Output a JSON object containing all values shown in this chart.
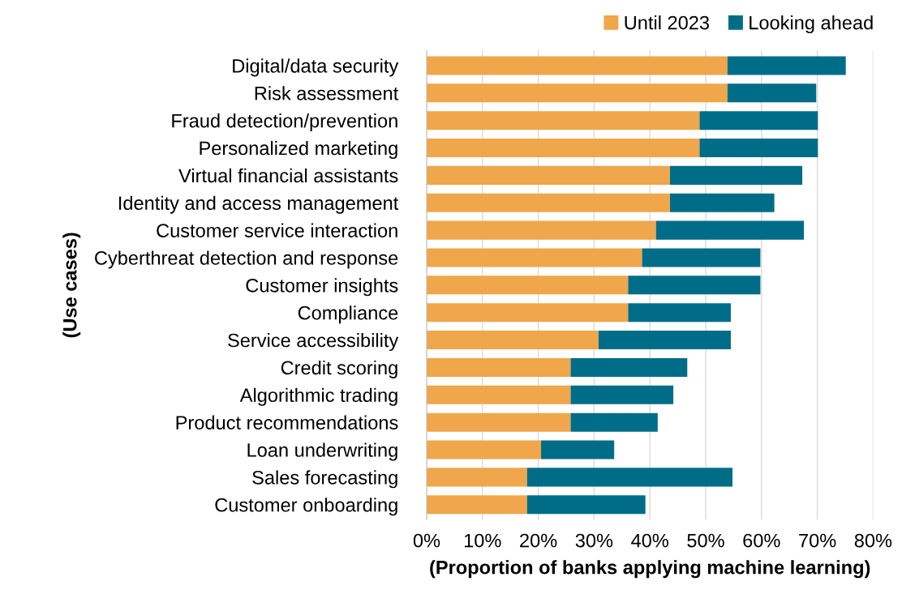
{
  "chart_data": {
    "type": "bar",
    "orientation": "horizontal",
    "stacked": true,
    "xlabel": "(Proportion of banks applying machine learning)",
    "ylabel": "(Use cases)",
    "categories": [
      "Digital/data security",
      "Risk assessment",
      "Fraud detection/prevention",
      "Personalized marketing",
      "Virtual financial assistants",
      "Identity and access management",
      "Customer service interaction",
      "Cyberthreat detection and response",
      "Customer insights",
      "Compliance",
      "Service accessibility",
      "Credit scoring",
      "Algorithmic trading",
      "Product recommendations",
      "Loan underwriting",
      "Sales forecasting",
      "Customer onboarding"
    ],
    "series": [
      {
        "name": "Until 2023",
        "color": "#f0a64a",
        "values": [
          53.9,
          53.9,
          48.9,
          48.9,
          43.6,
          43.6,
          41.1,
          38.6,
          36.1,
          36.1,
          30.8,
          25.8,
          25.8,
          25.8,
          20.5,
          18.0,
          18.0
        ]
      },
      {
        "name": "Looking ahead",
        "color": "#006d88",
        "values": [
          21.2,
          15.9,
          21.2,
          21.2,
          23.7,
          18.7,
          26.5,
          21.2,
          23.7,
          18.4,
          23.7,
          20.9,
          18.4,
          15.6,
          13.1,
          36.8,
          21.2
        ]
      }
    ],
    "xlim": [
      0,
      80
    ],
    "xticks": [
      {
        "value": 0,
        "label": "0%"
      },
      {
        "value": 10,
        "label": "10%"
      },
      {
        "value": 20,
        "label": "20%"
      },
      {
        "value": 30,
        "label": "30%"
      },
      {
        "value": 40,
        "label": "40%"
      },
      {
        "value": 50,
        "label": "50%"
      },
      {
        "value": 60,
        "label": "60%"
      },
      {
        "value": 70,
        "label": "70%"
      },
      {
        "value": 80,
        "label": "80%"
      }
    ],
    "grid": "x",
    "legend": "top right"
  }
}
